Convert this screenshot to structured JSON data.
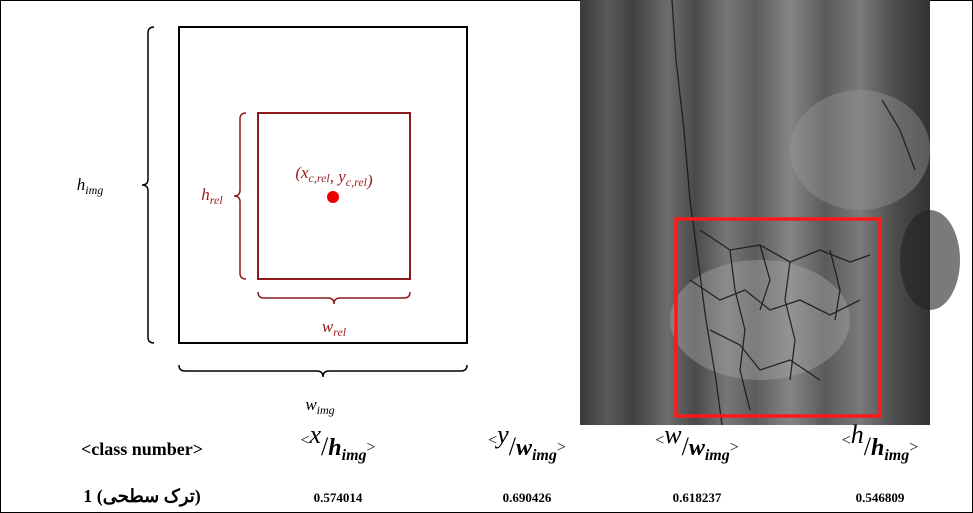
{
  "diagram": {
    "labels": {
      "h_img": {
        "text": "h",
        "sub": "img"
      },
      "h_rel": {
        "text": "h",
        "sub": "rel"
      },
      "center": [
        {
          "text": "(x",
          "sub": "c,rel"
        },
        {
          "text": ", y",
          "sub": "c,rel"
        },
        {
          "text": ")"
        }
      ],
      "w_rel": {
        "text": "w",
        "sub": "rel"
      },
      "w_img": {
        "text": "w",
        "sub": "img"
      }
    },
    "table": {
      "header": [
        "<class number>",
        {
          "open": "<",
          "num": "x",
          "den": "h",
          "sub": "img",
          "close": ">"
        },
        {
          "open": "<",
          "num": "y",
          "den": "w",
          "sub": "img",
          "close": ">"
        },
        {
          "open": "<",
          "num": "w",
          "den": "w",
          "sub": "img",
          "close": ">"
        },
        {
          "open": "<",
          "num": "h",
          "den": "h",
          "sub": "img",
          "close": ">"
        }
      ],
      "rows": [
        [
          "1 (ترک سطحی)",
          "0.574014",
          "0.690426",
          "0.618237",
          "0.546809"
        ]
      ]
    }
  }
}
